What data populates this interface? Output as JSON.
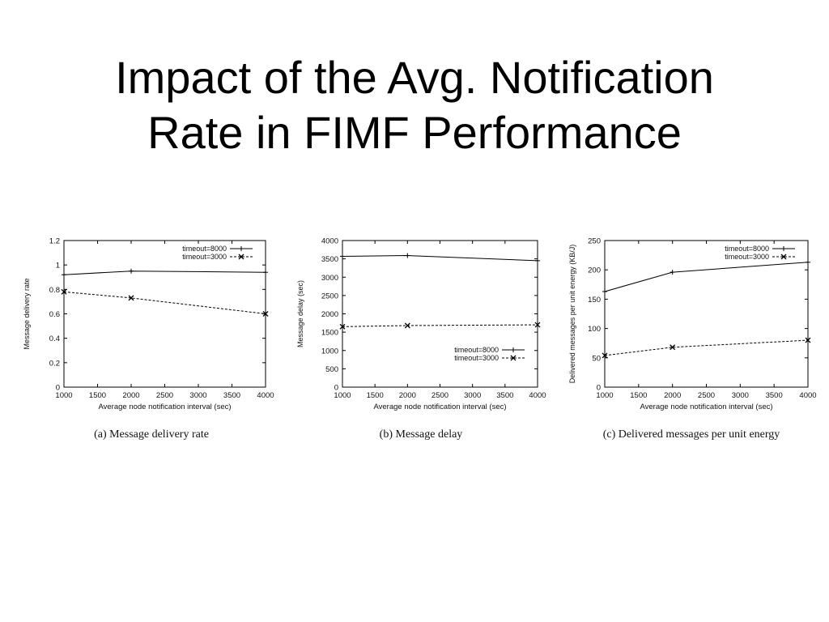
{
  "slide": {
    "title_line1": "Impact of the Avg. Notification",
    "title_line2": "Rate in FIMF Performance"
  },
  "chart_data": [
    {
      "type": "line",
      "caption": "(a) Message delivery rate",
      "xlabel": "Average node notification interval (sec)",
      "ylabel": "Message delivery rate",
      "xlim": [
        1000,
        4000
      ],
      "ylim": [
        0,
        1.2
      ],
      "xticks": [
        1000,
        1500,
        2000,
        2500,
        3000,
        3500,
        4000
      ],
      "yticks": [
        0,
        0.2,
        0.4,
        0.6,
        0.8,
        1,
        1.2
      ],
      "legend_position": "top-right",
      "grid": false,
      "series": [
        {
          "name": "timeout=8000",
          "marker": "plus",
          "dash": "solid",
          "x": [
            1000,
            2000,
            4000
          ],
          "y": [
            0.92,
            0.95,
            0.94
          ]
        },
        {
          "name": "timeout=3000",
          "marker": "cross",
          "dash": "dashed",
          "x": [
            1000,
            2000,
            4000
          ],
          "y": [
            0.78,
            0.73,
            0.6
          ]
        }
      ]
    },
    {
      "type": "line",
      "caption": "(b) Message delay",
      "xlabel": "Average node notification interval (sec)",
      "ylabel": "Message delay (sec)",
      "xlim": [
        1000,
        4000
      ],
      "ylim": [
        0,
        4000
      ],
      "xticks": [
        1000,
        1500,
        2000,
        2500,
        3000,
        3500,
        4000
      ],
      "yticks": [
        0,
        500,
        1000,
        1500,
        2000,
        2500,
        3000,
        3500,
        4000
      ],
      "legend_position": "bottom-right",
      "grid": false,
      "series": [
        {
          "name": "timeout=8000",
          "marker": "plus",
          "dash": "solid",
          "x": [
            1000,
            2000,
            4000
          ],
          "y": [
            3570,
            3590,
            3450
          ]
        },
        {
          "name": "timeout=3000",
          "marker": "cross",
          "dash": "dashed",
          "x": [
            1000,
            2000,
            4000
          ],
          "y": [
            1650,
            1680,
            1700
          ]
        }
      ]
    },
    {
      "type": "line",
      "caption": "(c) Delivered messages per unit energy",
      "xlabel": "Average node notification interval (sec)",
      "ylabel": "Delivered messages per unit energy (KB/J)",
      "xlim": [
        1000,
        4000
      ],
      "ylim": [
        0,
        250
      ],
      "xticks": [
        1000,
        1500,
        2000,
        2500,
        3000,
        3500,
        4000
      ],
      "yticks": [
        0,
        50,
        100,
        150,
        200,
        250
      ],
      "legend_position": "top-right",
      "grid": false,
      "series": [
        {
          "name": "timeout=8000",
          "marker": "plus",
          "dash": "solid",
          "x": [
            1000,
            2000,
            4000
          ],
          "y": [
            163,
            196,
            213
          ]
        },
        {
          "name": "timeout=3000",
          "marker": "cross",
          "dash": "dashed",
          "x": [
            1000,
            2000,
            4000
          ],
          "y": [
            54,
            68,
            80
          ]
        }
      ]
    }
  ]
}
